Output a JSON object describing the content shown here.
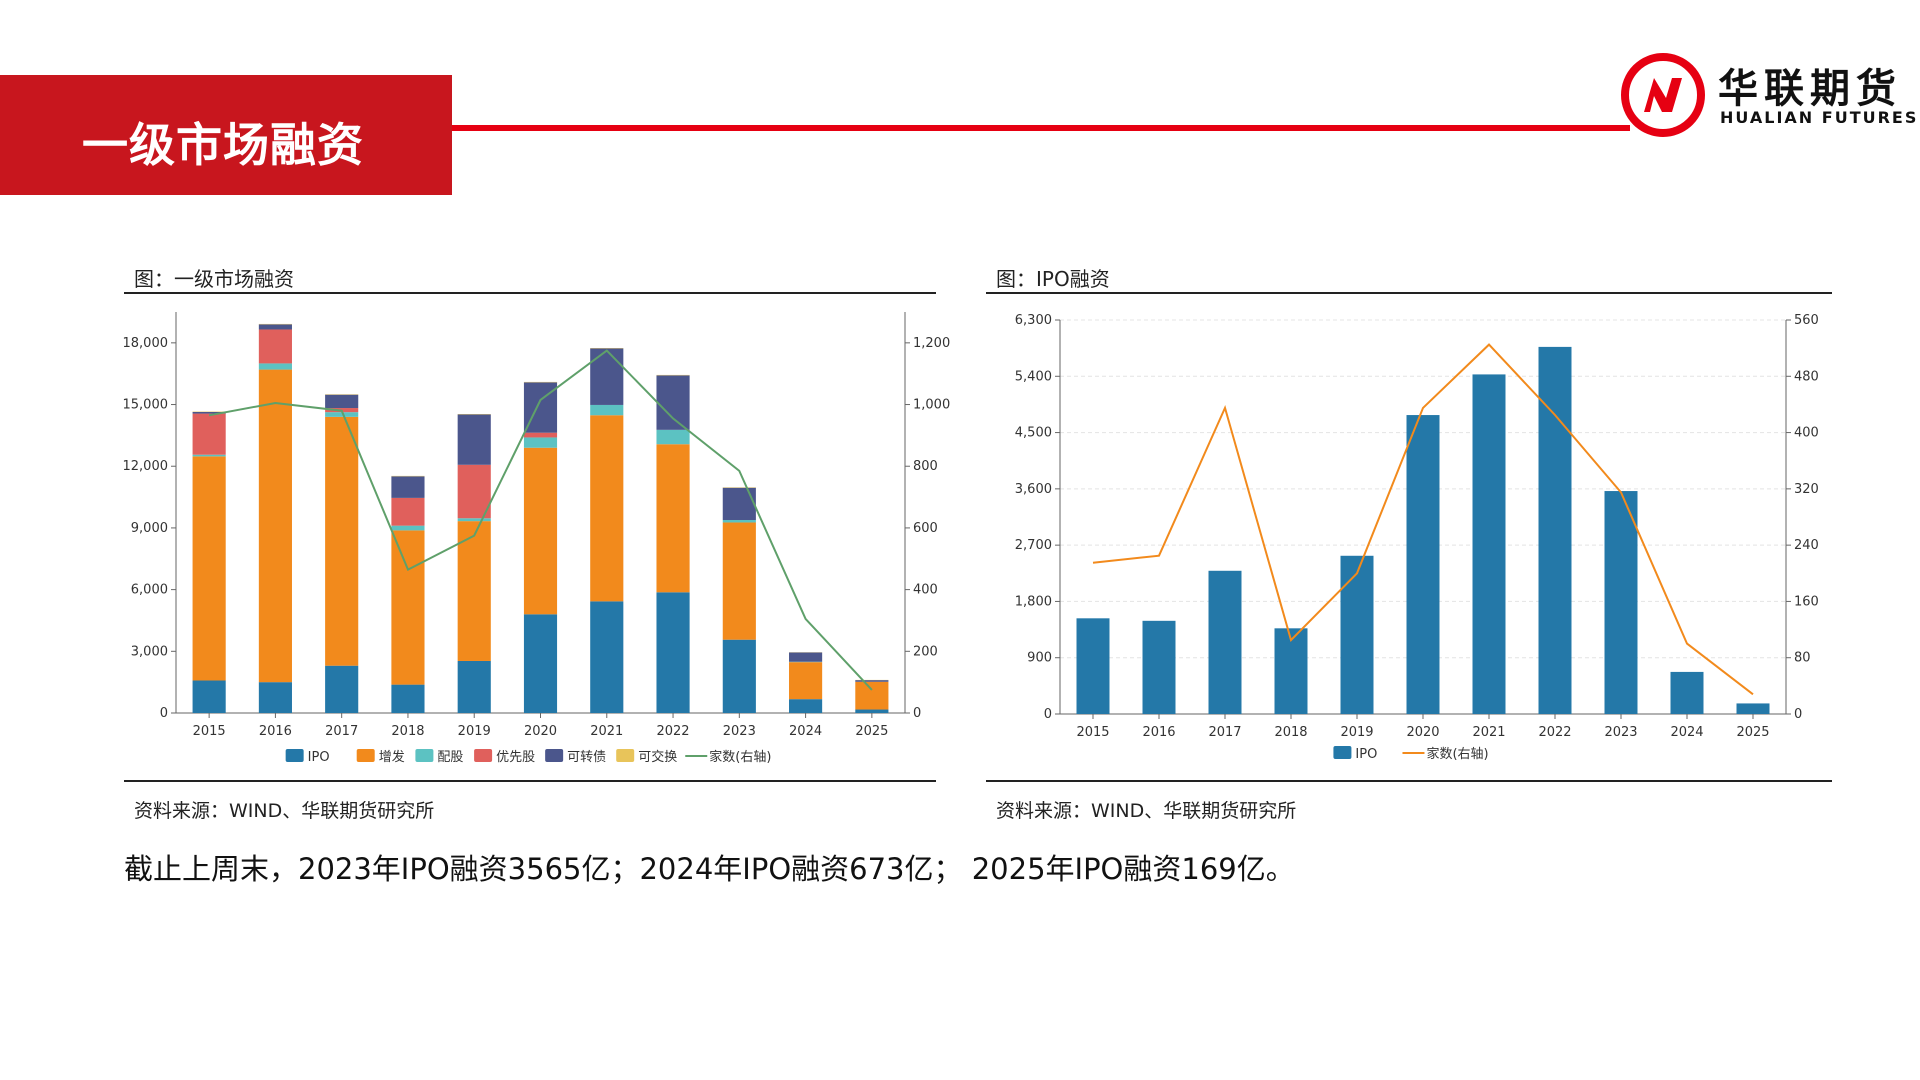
{
  "page": {
    "title": "一级市场融资",
    "summary": "截止上周末，2023年IPO融资3565亿；2024年IPO融资673亿；  2025年IPO融资169亿。",
    "source_left": "资料来源：WIND、华联期货研究所",
    "source_right": "资料来源：WIND、华联期货研究所"
  },
  "logo": {
    "cn": "华联期货",
    "en": "HUALIAN FUTURES",
    "brand_color": "#e60012"
  },
  "colors": {
    "accent_red": "#c8161e",
    "ipo": "#2478a8",
    "zengfa": "#f28a1c",
    "peigu": "#5cc2c2",
    "youxiangu": "#e0605c",
    "kezhuanzhai": "#4b568c",
    "kejiaohuan": "#e8c45a",
    "count_left": "#5fa06a",
    "count_right": "#f28a1c"
  },
  "chart_data": [
    {
      "type": "bar",
      "stacked": true,
      "title": "图：一级市场融资",
      "categories": [
        "2015",
        "2016",
        "2017",
        "2018",
        "2019",
        "2020",
        "2021",
        "2022",
        "2023",
        "2024",
        "2025"
      ],
      "ylim": [
        0,
        19500
      ],
      "y_ticks": [
        "0",
        "3,000",
        "6,000",
        "9,000",
        "12,000",
        "15,000",
        "18,000"
      ],
      "y2lim": [
        0,
        1300
      ],
      "y2_ticks": [
        "0",
        "200",
        "400",
        "600",
        "800",
        "1,000",
        "1,200"
      ],
      "grid": false,
      "legend_position": "bottom",
      "series": [
        {
          "name": "IPO",
          "color_key": "ipo",
          "values": [
            1580,
            1500,
            2300,
            1380,
            2530,
            4800,
            5430,
            5870,
            3565,
            673,
            169
          ]
        },
        {
          "name": "增发",
          "color_key": "zengfa",
          "values": [
            10900,
            15200,
            12100,
            7500,
            6800,
            8100,
            9050,
            7200,
            5700,
            1800,
            1350
          ]
        },
        {
          "name": "配股",
          "color_key": "peigu",
          "values": [
            80,
            300,
            230,
            230,
            140,
            500,
            500,
            700,
            120,
            20,
            0
          ]
        },
        {
          "name": "优先股",
          "color_key": "youxiangu",
          "values": [
            2000,
            1650,
            200,
            1350,
            2600,
            230,
            0,
            0,
            0,
            0,
            0
          ]
        },
        {
          "name": "可转债",
          "color_key": "kezhuanzhai",
          "values": [
            80,
            250,
            650,
            1050,
            2450,
            2450,
            2750,
            2650,
            1570,
            450,
            80
          ]
        },
        {
          "name": "可交换",
          "color_key": "kejiaohuan",
          "values": [
            20,
            20,
            20,
            20,
            20,
            20,
            20,
            20,
            20,
            10,
            10
          ]
        }
      ],
      "line_series": {
        "name": "家数(右轴)",
        "color_key": "count_left",
        "axis": "right",
        "values": [
          965,
          1005,
          980,
          465,
          575,
          1015,
          1175,
          955,
          785,
          305,
          75
        ]
      }
    },
    {
      "type": "bar",
      "title": "图：IPO融资",
      "categories": [
        "2015",
        "2016",
        "2017",
        "2018",
        "2019",
        "2020",
        "2021",
        "2022",
        "2023",
        "2024",
        "2025"
      ],
      "ylim": [
        0,
        6300
      ],
      "y_ticks": [
        "0",
        "900",
        "1,800",
        "2,700",
        "3,600",
        "4,500",
        "5,400",
        "6,300"
      ],
      "y2lim": [
        0,
        560
      ],
      "y2_ticks": [
        "0",
        "80",
        "160",
        "240",
        "320",
        "400",
        "480",
        "560"
      ],
      "grid": true,
      "legend_position": "bottom",
      "series": [
        {
          "name": "IPO",
          "color_key": "ipo",
          "values": [
            1530,
            1490,
            2290,
            1370,
            2530,
            4780,
            5430,
            5870,
            3565,
            673,
            169
          ]
        }
      ],
      "line_series": {
        "name": "家数(右轴)",
        "color_key": "count_right",
        "axis": "right",
        "values": [
          215,
          225,
          435,
          105,
          200,
          435,
          525,
          425,
          315,
          100,
          28
        ]
      }
    }
  ]
}
